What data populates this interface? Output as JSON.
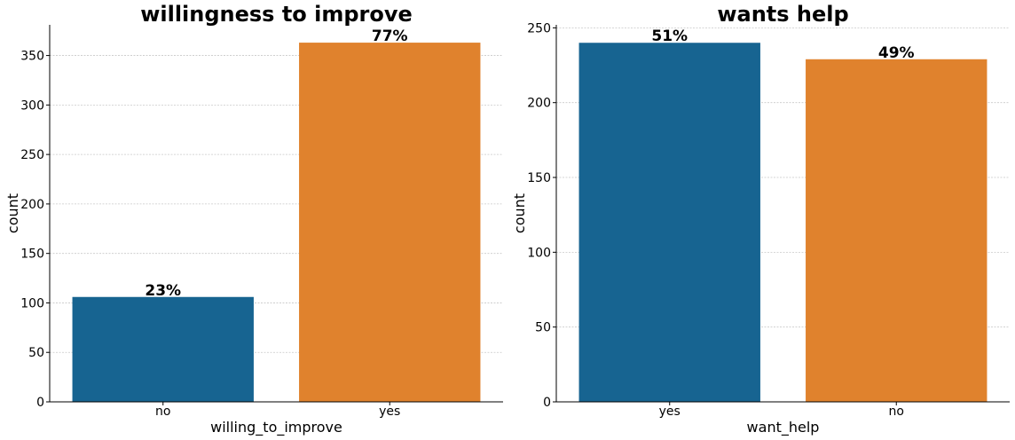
{
  "chart_data": [
    {
      "type": "bar",
      "title": "willingness to improve",
      "xlabel": "willing_to_improve",
      "ylabel": "count",
      "categories": [
        "no",
        "yes"
      ],
      "values": [
        106,
        363
      ],
      "labels": [
        "23%",
        "77%"
      ],
      "colors": [
        "#176491",
        "#E0822D"
      ],
      "yticks": [
        0,
        50,
        100,
        150,
        200,
        250,
        300,
        350
      ],
      "ylim": [
        0,
        381
      ],
      "grid": true
    },
    {
      "type": "bar",
      "title": "wants help",
      "xlabel": "want_help",
      "ylabel": "count",
      "categories": [
        "yes",
        "no"
      ],
      "values": [
        240,
        229
      ],
      "labels": [
        "51%",
        "49%"
      ],
      "colors": [
        "#176491",
        "#E0822D"
      ],
      "yticks": [
        0,
        50,
        100,
        150,
        200,
        250
      ],
      "ylim": [
        0,
        252
      ],
      "grid": true
    }
  ]
}
